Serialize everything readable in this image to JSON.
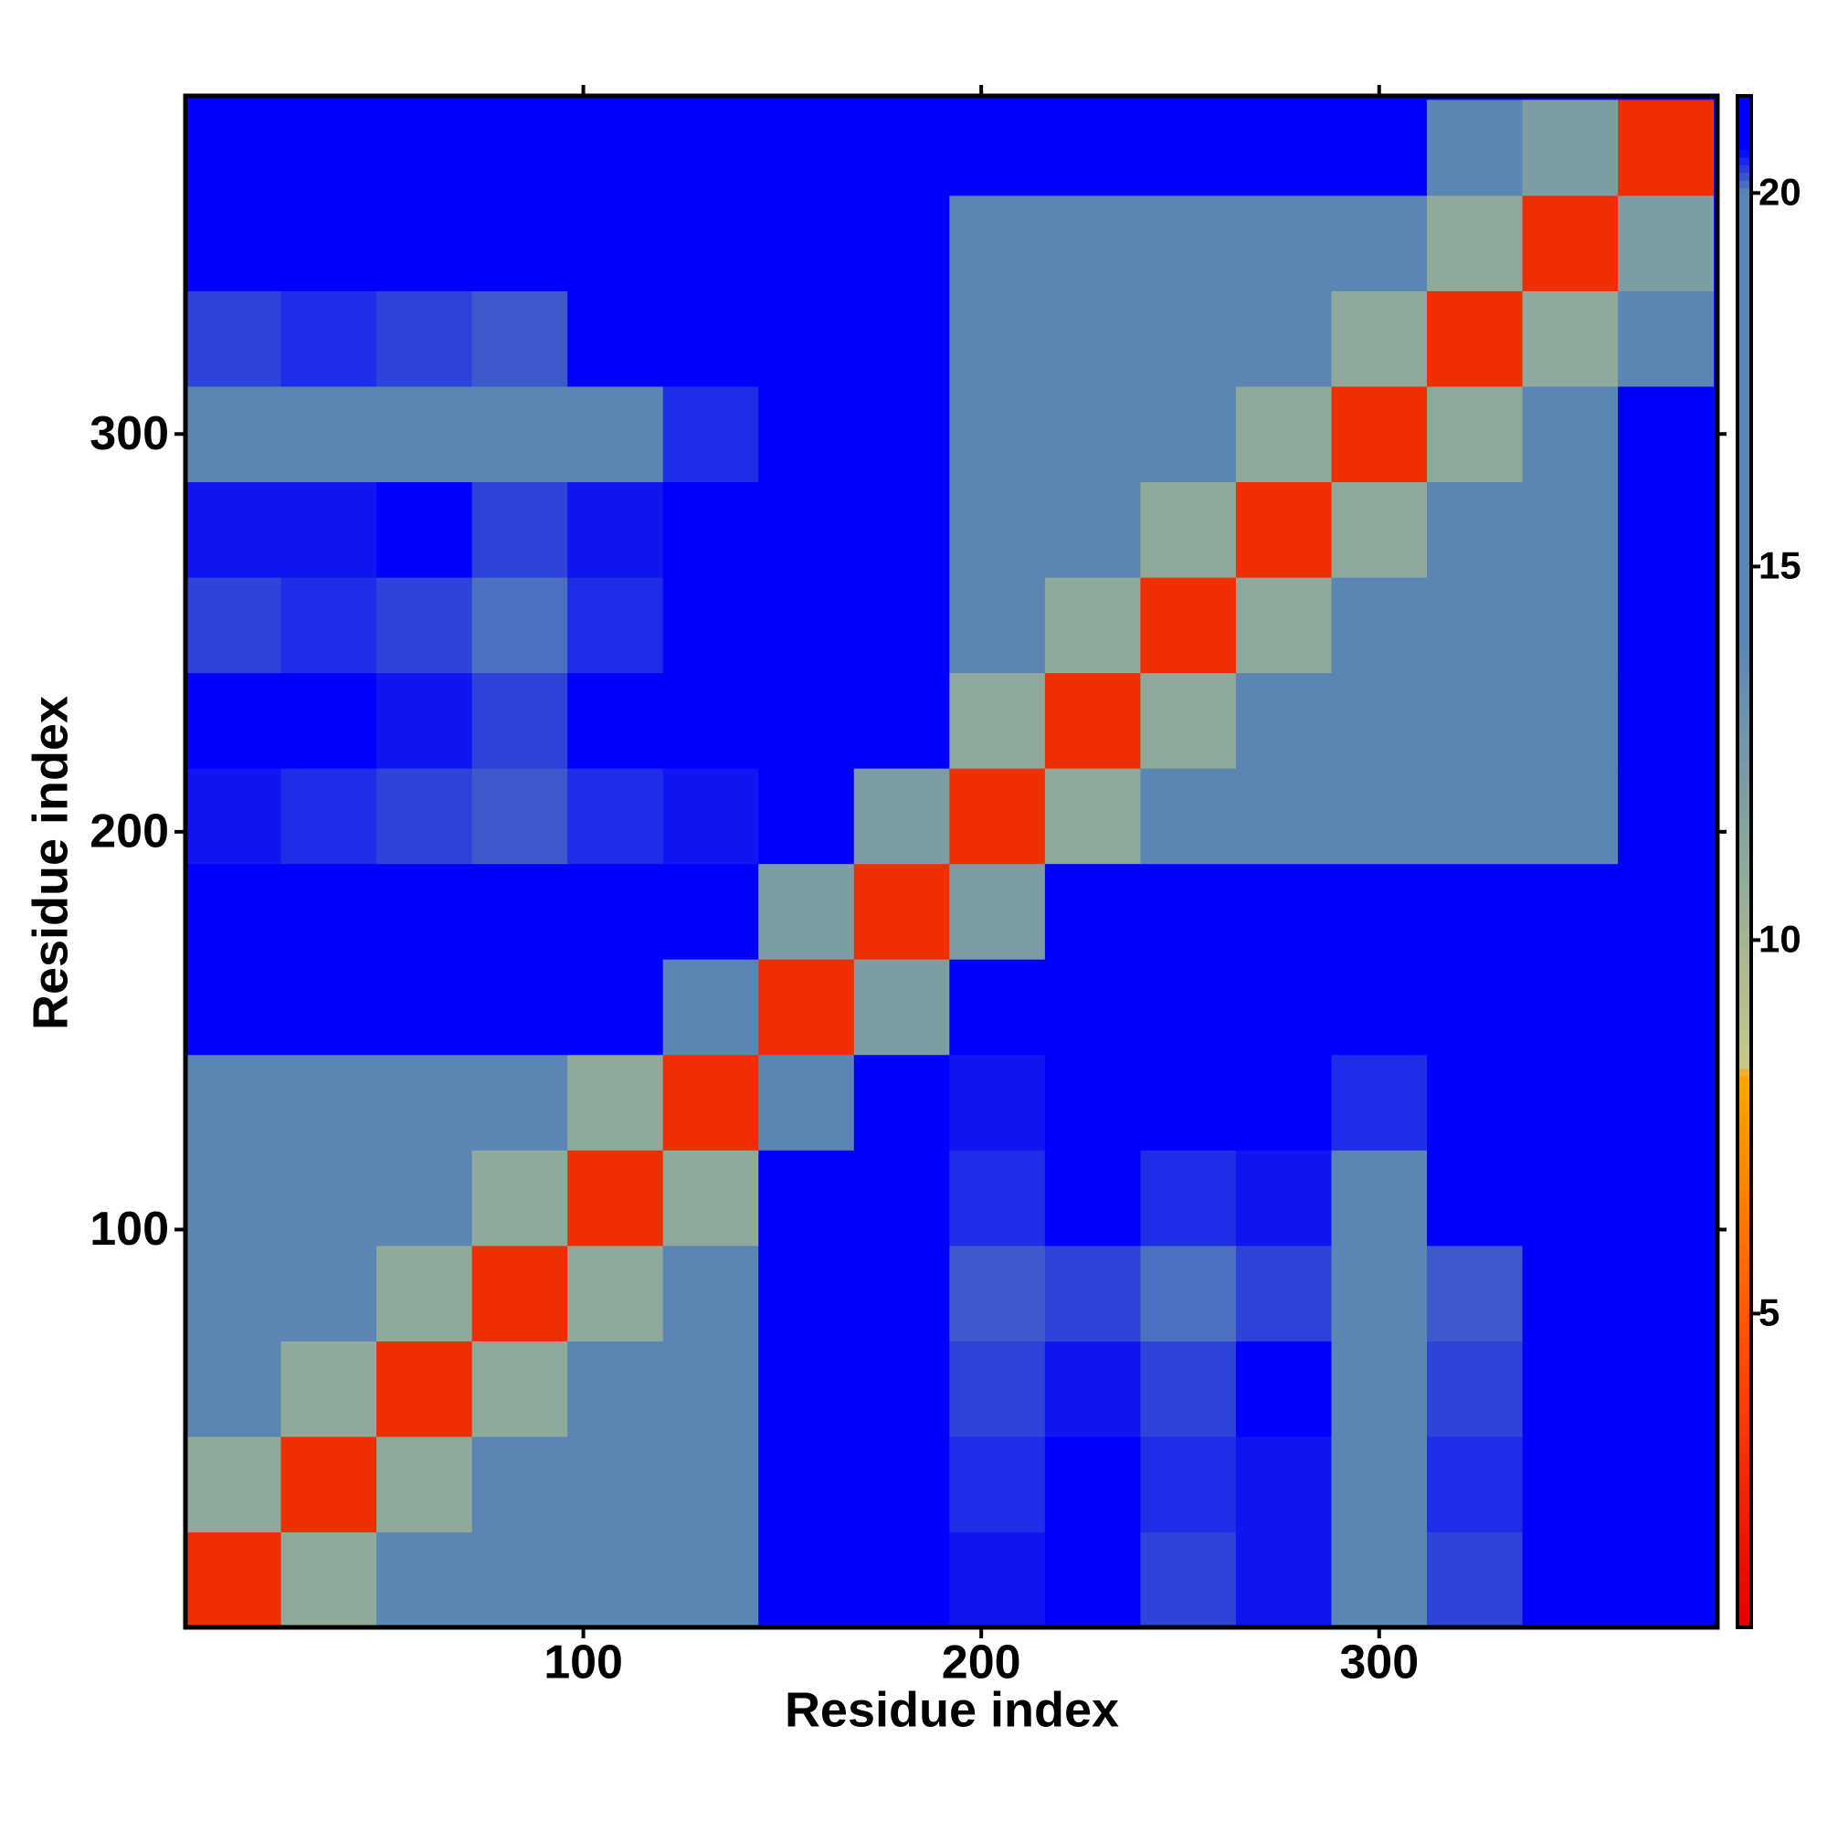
{
  "chart_data": {
    "type": "heatmap",
    "xlabel": "Residue index",
    "ylabel": "Residue index",
    "xlim": [
      0,
      385
    ],
    "ylim": [
      0,
      385
    ],
    "xticks": [
      100,
      200,
      300
    ],
    "yticks": [
      100,
      200,
      300
    ],
    "xbins": [
      0,
      24,
      48,
      72,
      96,
      120,
      144,
      168,
      192,
      216,
      240,
      264,
      288,
      312,
      336,
      360,
      384
    ],
    "ybins": [
      0,
      24,
      48,
      72,
      96,
      120,
      144,
      168,
      192,
      216,
      240,
      264,
      288,
      312,
      336,
      360,
      384
    ],
    "z": [
      [
        3,
        11,
        15,
        15,
        15,
        16,
        21,
        21,
        20.5,
        20.6,
        20.3,
        20.5,
        19.8,
        20.3,
        20.8,
        21
      ],
      [
        11,
        3,
        11,
        15,
        15,
        15,
        21,
        21,
        20.4,
        20.6,
        20.4,
        20.5,
        19.9,
        20.4,
        20.8,
        21
      ],
      [
        15,
        11,
        3,
        11,
        15,
        16,
        21,
        21,
        20.3,
        20.5,
        20.3,
        20.6,
        19.8,
        20.3,
        20.8,
        21
      ],
      [
        15,
        15,
        11,
        3,
        11,
        15,
        21,
        21,
        20.2,
        20.3,
        20.1,
        20.3,
        19.6,
        20.2,
        20.8,
        21
      ],
      [
        15,
        15,
        15,
        11,
        3,
        11,
        20.8,
        21,
        20.4,
        20.6,
        20.4,
        20.5,
        20.0,
        20.6,
        21,
        21
      ],
      [
        16,
        15,
        16,
        15,
        11,
        3,
        15,
        21,
        20.5,
        20.8,
        20.6,
        20.7,
        20.4,
        20.8,
        21,
        21
      ],
      [
        21,
        21,
        21,
        21,
        20.8,
        15,
        3,
        12,
        20.8,
        21,
        21,
        21,
        21,
        21,
        21,
        21
      ],
      [
        21,
        21,
        21,
        21,
        21,
        21,
        12,
        3,
        12,
        21,
        21,
        21,
        21,
        21,
        21,
        21
      ],
      [
        20.5,
        20.4,
        20.3,
        20.2,
        20.4,
        20.5,
        20.8,
        12,
        3,
        11,
        14,
        15,
        15,
        16,
        17,
        21
      ],
      [
        20.6,
        20.6,
        20.5,
        20.3,
        20.6,
        20.8,
        21,
        21,
        11,
        3,
        11,
        14,
        15,
        15,
        16,
        21
      ],
      [
        20.3,
        20.4,
        20.3,
        20.1,
        20.4,
        20.6,
        21,
        21,
        14,
        11,
        3,
        11,
        14,
        15,
        15,
        21
      ],
      [
        20.5,
        20.5,
        20.6,
        20.3,
        20.5,
        20.7,
        21,
        21,
        15,
        14,
        11,
        3,
        11,
        14,
        15,
        21
      ],
      [
        19.8,
        19.9,
        19.8,
        19.6,
        20.0,
        20.4,
        21,
        21,
        15,
        15,
        14,
        11,
        3,
        11,
        14,
        21
      ],
      [
        20.3,
        20.4,
        20.3,
        20.2,
        20.6,
        20.8,
        21,
        21,
        16,
        15,
        15,
        14,
        11,
        3,
        11,
        16
      ],
      [
        20.8,
        20.8,
        20.8,
        20.8,
        21,
        21,
        21,
        21,
        17,
        16,
        15,
        15,
        14,
        11,
        3,
        12
      ],
      [
        21,
        21,
        21,
        21,
        21,
        21,
        21,
        21,
        21,
        21,
        21,
        21,
        21,
        16,
        12,
        3
      ]
    ],
    "clim": [
      0.8,
      21.3
    ],
    "cticks": [
      5,
      10,
      15,
      20
    ],
    "colorscale": [
      [
        0.8,
        "#e00000"
      ],
      [
        5,
        "#ff5a00"
      ],
      [
        8.2,
        "#ffa500"
      ],
      [
        8.3,
        "#c8c88a"
      ],
      [
        11,
        "#8fa99a"
      ],
      [
        14,
        "#5b86b3"
      ],
      [
        20,
        "#5b86b3"
      ],
      [
        20.6,
        "#0000ff"
      ],
      [
        21.3,
        "#0000ff"
      ]
    ]
  }
}
